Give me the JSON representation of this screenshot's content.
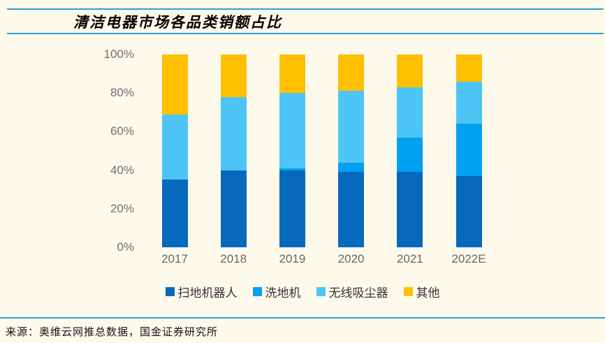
{
  "page": {
    "background_color": "#FDFAEC",
    "rule_color": "#2E9FD6"
  },
  "header": {
    "title": "清洁电器市场各品类销额占比"
  },
  "footer": {
    "source": "来源：奥维云网推总数据，国金证券研究所"
  },
  "chart_data": {
    "type": "bar",
    "stacked": true,
    "title": "清洁电器市场各品类销额占比",
    "categories": [
      "2017",
      "2018",
      "2019",
      "2020",
      "2021",
      "2022E"
    ],
    "series": [
      {
        "name": "扫地机器人",
        "color": "#0769BC",
        "values": [
          35,
          40,
          40,
          39,
          39,
          37
        ]
      },
      {
        "name": "洗地机",
        "color": "#01A0F1",
        "values": [
          0,
          0,
          1,
          5,
          18,
          27
        ]
      },
      {
        "name": "无线吸尘器",
        "color": "#4DC5F6",
        "values": [
          34,
          38,
          39,
          37,
          26,
          22
        ]
      },
      {
        "name": "其他",
        "color": "#FFC000",
        "values": [
          31,
          22,
          20,
          19,
          17,
          14
        ]
      }
    ],
    "xlabel": "",
    "ylabel": "",
    "ylim": [
      0,
      100
    ],
    "yticks": [
      "0%",
      "20%",
      "40%",
      "60%",
      "80%",
      "100%"
    ],
    "ytick_values": [
      0,
      20,
      40,
      60,
      80,
      100
    ],
    "grid": false,
    "legend_position": "bottom"
  }
}
